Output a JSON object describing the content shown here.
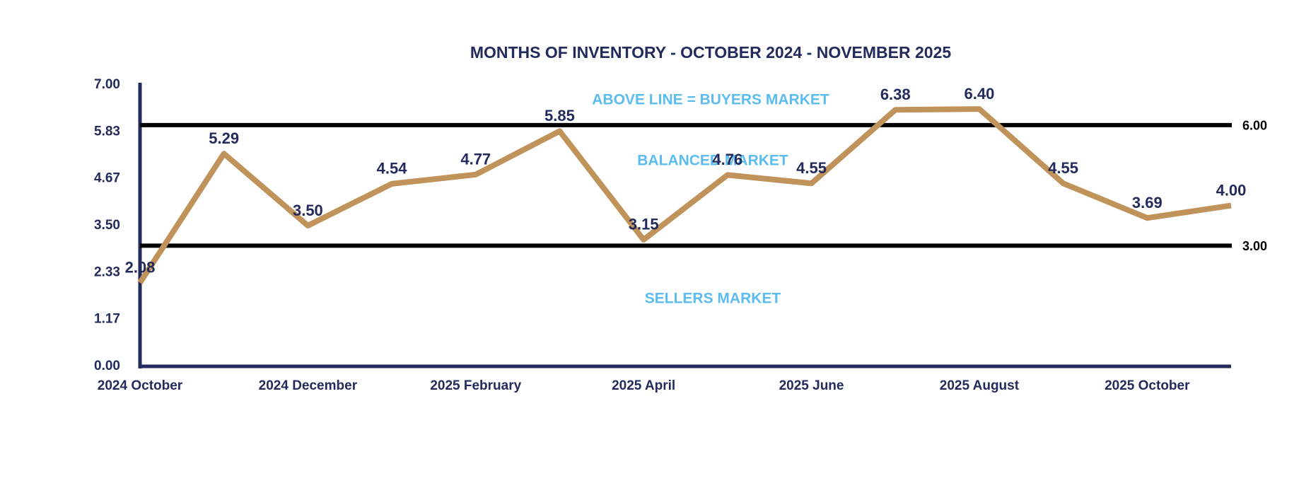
{
  "chart_data": {
    "type": "line",
    "title": "MONTHS OF INVENTORY - OCTOBER 2024 - NOVEMBER 2025",
    "categories": [
      "2024 October",
      null,
      "2024 December",
      null,
      "2025 February",
      null,
      "2025 April",
      null,
      "2025 June",
      null,
      "2025 August",
      null,
      "2025 October",
      null
    ],
    "series": [
      {
        "name": "Months of Inventory",
        "color": "#c0935a",
        "values": [
          2.08,
          5.29,
          3.5,
          4.54,
          4.77,
          5.85,
          3.15,
          4.76,
          4.55,
          6.38,
          6.4,
          4.55,
          3.69,
          4.0
        ],
        "value_labels": [
          "2.08",
          "5.29",
          "3.50",
          "4.54",
          "4.77",
          "5.85",
          "3.15",
          "4.76",
          "4.55",
          "6.38",
          "6.40",
          "4.55",
          "3.69",
          "4.00"
        ]
      }
    ],
    "ylim": [
      0,
      7
    ],
    "yticks": [
      {
        "value": 0,
        "label": "0.00"
      },
      {
        "value": 1.17,
        "label": "1.17"
      },
      {
        "value": 2.33,
        "label": "2.33"
      },
      {
        "value": 3.5,
        "label": "3.50"
      },
      {
        "value": 4.67,
        "label": "4.67"
      },
      {
        "value": 5.83,
        "label": "5.83"
      },
      {
        "value": 7,
        "label": "7.00"
      }
    ],
    "reference_lines": [
      {
        "value": 6,
        "label": "6.00"
      },
      {
        "value": 3,
        "label": "3.00"
      }
    ],
    "annotations": [
      "ABOVE LINE = BUYERS MARKET",
      "BALANCED MARKET",
      "SELLERS MARKET"
    ],
    "grid": false
  }
}
